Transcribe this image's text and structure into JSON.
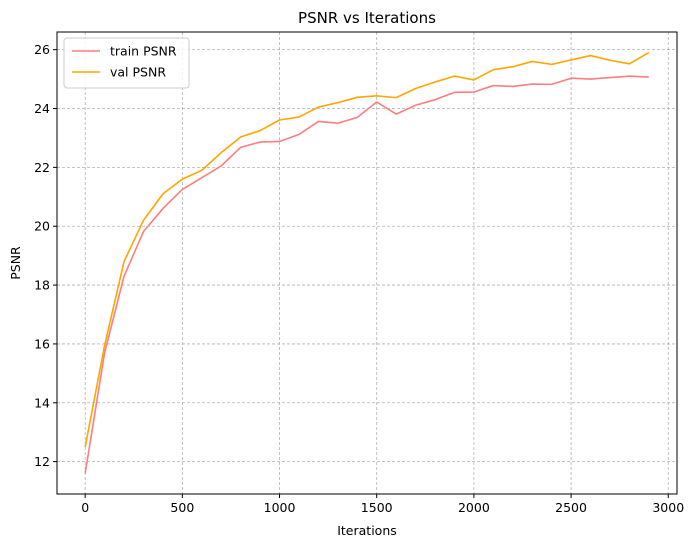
{
  "chart_data": {
    "type": "line",
    "title": "PSNR vs Iterations",
    "xlabel": "Iterations",
    "ylabel": "PSNR",
    "xlim": [
      -145,
      3045
    ],
    "ylim": [
      10.9,
      26.6
    ],
    "xticks": [
      0,
      500,
      1000,
      1500,
      2000,
      2500,
      3000
    ],
    "yticks": [
      12,
      14,
      16,
      18,
      20,
      22,
      24,
      26
    ],
    "grid": true,
    "legend_position": "top-left",
    "x": [
      0,
      100,
      200,
      300,
      400,
      500,
      600,
      700,
      800,
      900,
      1000,
      1100,
      1200,
      1300,
      1400,
      1500,
      1600,
      1700,
      1800,
      1900,
      2000,
      2100,
      2200,
      2300,
      2400,
      2500,
      2600,
      2700,
      2800,
      2900
    ],
    "series": [
      {
        "name": "train PSNR",
        "color": "#fa7f7f",
        "values": [
          11.6,
          15.7,
          18.3,
          19.82,
          20.6,
          21.25,
          21.65,
          22.05,
          22.68,
          22.86,
          22.88,
          23.12,
          23.56,
          23.5,
          23.7,
          24.22,
          23.81,
          24.11,
          24.3,
          24.55,
          24.56,
          24.78,
          24.75,
          24.83,
          24.82,
          25.03,
          25.0,
          25.05,
          25.1,
          25.07
        ]
      },
      {
        "name": "val PSNR",
        "color": "#ffa500",
        "values": [
          12.5,
          15.95,
          18.8,
          20.2,
          21.1,
          21.6,
          21.9,
          22.5,
          23.03,
          23.25,
          23.61,
          23.71,
          24.05,
          24.2,
          24.38,
          24.43,
          24.37,
          24.68,
          24.9,
          25.1,
          24.97,
          25.32,
          25.42,
          25.6,
          25.5,
          25.65,
          25.8,
          25.64,
          25.52,
          25.9
        ]
      }
    ]
  }
}
